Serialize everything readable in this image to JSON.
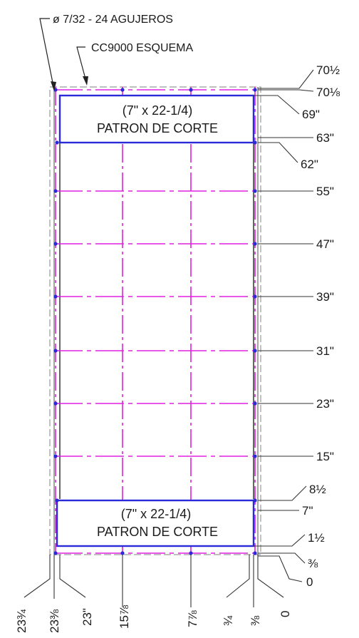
{
  "callouts": {
    "holes": "ø 7/32 - 24 AGUJEROS",
    "scheme": "CC9000 ESQUEMA"
  },
  "cut_patterns": {
    "top": {
      "size": "(7\" x 22-1/4)",
      "label": "PATRON DE CORTE"
    },
    "bottom": {
      "size": "(7\" x 22-1/4)",
      "label": "PATRON DE CORTE"
    }
  },
  "right_dimensions": [
    "70½",
    "70⅛",
    "69\"",
    "63\"",
    "62\"",
    "55\"",
    "47\"",
    "39\"",
    "31\"",
    "23\"",
    "15\"",
    "8½",
    "7\"",
    "1½",
    "⅜",
    "0"
  ],
  "bottom_dimensions": [
    "23¾",
    "23⅜",
    "23\"",
    "15⅞",
    "7⅞",
    "¾",
    "⅜",
    "0"
  ],
  "colors": {
    "outline": "#3a3a3a",
    "box": "#2a2ad8",
    "grid": "#e020e0",
    "dashed": "#9a9a9a",
    "dot": "#2a2ad8"
  }
}
